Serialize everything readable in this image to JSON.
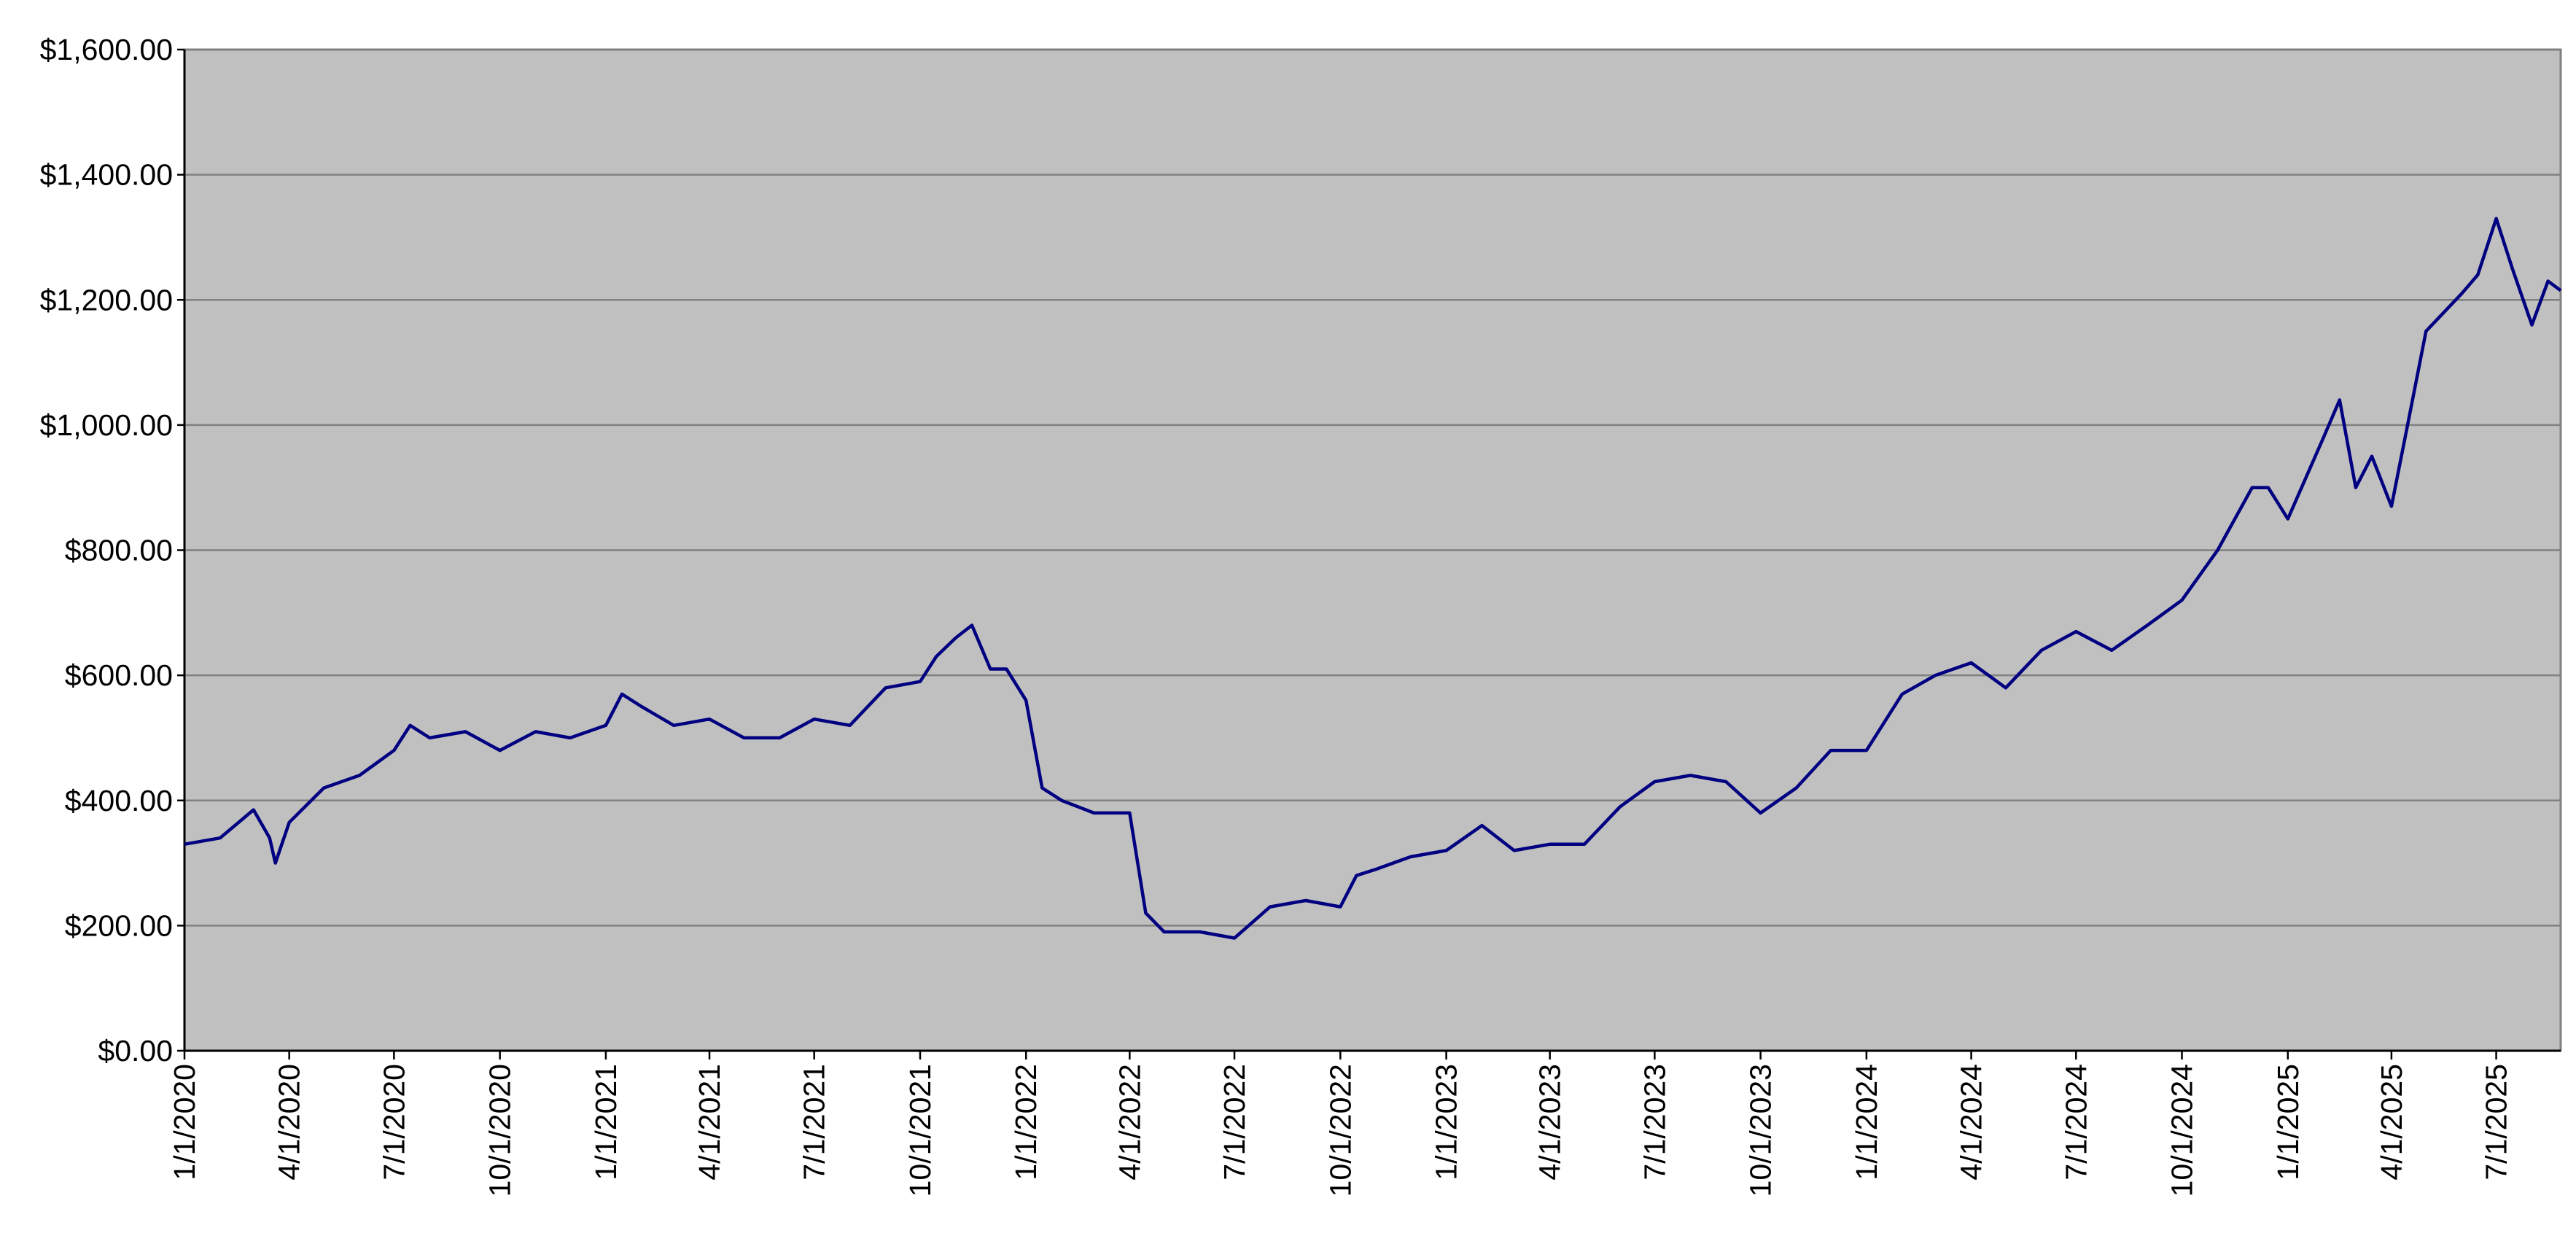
{
  "chart_data": {
    "type": "line",
    "x": [
      "1/1/2020",
      "2/1/2020",
      "3/1/2020",
      "3/15/2020",
      "3/20/2020",
      "4/1/2020",
      "5/1/2020",
      "6/1/2020",
      "7/1/2020",
      "7/15/2020",
      "8/1/2020",
      "9/1/2020",
      "10/1/2020",
      "11/1/2020",
      "12/1/2020",
      "1/1/2021",
      "1/15/2021",
      "2/1/2021",
      "3/1/2021",
      "4/1/2021",
      "5/1/2021",
      "6/1/2021",
      "7/1/2021",
      "8/1/2021",
      "9/1/2021",
      "10/1/2021",
      "10/15/2021",
      "11/1/2021",
      "11/15/2021",
      "12/1/2021",
      "12/15/2021",
      "1/1/2022",
      "1/15/2022",
      "2/1/2022",
      "3/1/2022",
      "4/1/2022",
      "4/15/2022",
      "5/1/2022",
      "6/1/2022",
      "7/1/2022",
      "8/1/2022",
      "9/1/2022",
      "10/1/2022",
      "10/15/2022",
      "11/1/2022",
      "12/1/2022",
      "1/1/2023",
      "2/1/2023",
      "3/1/2023",
      "4/1/2023",
      "5/1/2023",
      "6/1/2023",
      "7/1/2023",
      "8/1/2023",
      "9/1/2023",
      "10/1/2023",
      "11/1/2023",
      "12/1/2023",
      "1/1/2024",
      "2/1/2024",
      "3/1/2024",
      "4/1/2024",
      "5/1/2024",
      "6/1/2024",
      "7/1/2024",
      "8/1/2024",
      "9/1/2024",
      "10/1/2024",
      "11/1/2024",
      "12/1/2024",
      "12/15/2024",
      "1/1/2025",
      "2/1/2025",
      "2/15/2025",
      "3/1/2025",
      "3/15/2025",
      "4/1/2025",
      "4/15/2025",
      "5/1/2025",
      "6/1/2025",
      "6/15/2025",
      "7/1/2025",
      "7/15/2025",
      "8/1/2025",
      "8/15/2025",
      "8/26/2025"
    ],
    "values": [
      330,
      340,
      385,
      340,
      300,
      365,
      420,
      440,
      480,
      520,
      500,
      510,
      480,
      510,
      500,
      520,
      570,
      550,
      520,
      530,
      500,
      500,
      530,
      520,
      580,
      590,
      630,
      660,
      680,
      610,
      610,
      560,
      420,
      400,
      380,
      380,
      220,
      190,
      190,
      180,
      230,
      240,
      230,
      280,
      290,
      310,
      320,
      360,
      320,
      330,
      330,
      390,
      430,
      440,
      430,
      380,
      420,
      480,
      480,
      570,
      600,
      620,
      580,
      640,
      670,
      640,
      680,
      720,
      800,
      900,
      900,
      850,
      980,
      1040,
      900,
      950,
      870,
      1000,
      1150,
      1210,
      1240,
      1330,
      1250,
      1160,
      1230,
      1215
    ],
    "color": "#000080",
    "xlim": [
      "1/1/2020",
      "8/26/2025"
    ],
    "xticks": [
      "1/1/2020",
      "4/1/2020",
      "7/1/2020",
      "10/1/2020",
      "1/1/2021",
      "4/1/2021",
      "7/1/2021",
      "10/1/2021",
      "1/1/2022",
      "4/1/2022",
      "7/1/2022",
      "10/1/2022",
      "1/1/2023",
      "4/1/2023",
      "7/1/2023",
      "10/1/2023",
      "1/1/2024",
      "4/1/2024",
      "7/1/2024",
      "10/1/2024",
      "1/1/2025",
      "4/1/2025",
      "7/1/2025"
    ],
    "ylim": [
      0,
      1600
    ],
    "yticks": [
      {
        "value": 0,
        "label": "$0.00"
      },
      {
        "value": 200,
        "label": "$200.00"
      },
      {
        "value": 400,
        "label": "$400.00"
      },
      {
        "value": 600,
        "label": "$600.00"
      },
      {
        "value": 800,
        "label": "$800.00"
      },
      {
        "value": 1000,
        "label": "$1,000.00"
      },
      {
        "value": 1200,
        "label": "$1,200.00"
      },
      {
        "value": 1400,
        "label": "$1,400.00"
      },
      {
        "value": 1600,
        "label": "$1,600.00"
      }
    ],
    "grid": true
  }
}
